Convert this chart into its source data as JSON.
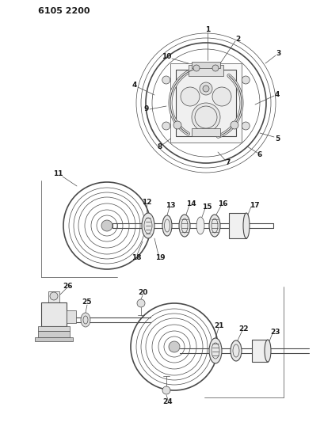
{
  "title_code": "6105 2200",
  "bg_color": "#ffffff",
  "line_color": "#4a4a4a",
  "text_color": "#1a1a1a",
  "fig_width": 4.1,
  "fig_height": 5.33,
  "dpi": 100
}
